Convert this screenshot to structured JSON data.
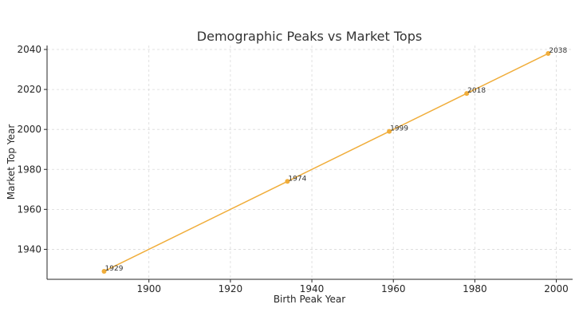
{
  "chart_data": {
    "type": "line",
    "title": "Demographic Peaks vs Market Tops",
    "xlabel": "Birth Peak Year",
    "ylabel": "Market Top Year",
    "x": [
      1889,
      1934,
      1959,
      1978,
      1998
    ],
    "series": [
      {
        "values": [
          1929,
          1974,
          1999,
          2018,
          2038
        ],
        "color": "#f0ad3a"
      }
    ],
    "data_labels": [
      "1929",
      "1974",
      "1999",
      "2018",
      "2038"
    ],
    "xlim": [
      1875,
      2004
    ],
    "ylim": [
      1925,
      2042
    ],
    "xticks": [
      1900,
      1920,
      1940,
      1960,
      1980,
      2000
    ],
    "yticks": [
      1940,
      1960,
      1980,
      2000,
      2020,
      2040
    ],
    "grid": true,
    "marker": "circle"
  }
}
